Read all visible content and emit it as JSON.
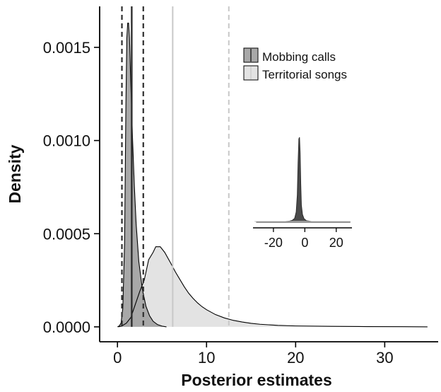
{
  "chart_data": {
    "type": "area",
    "xlabel": "Posterior estimates",
    "ylabel": "Density",
    "xlim": [
      -2,
      36
    ],
    "ylim": [
      -8e-05,
      0.00172
    ],
    "x_ticks": [
      0,
      10,
      20,
      30
    ],
    "y_ticks": [
      0.0,
      0.0005,
      0.001,
      0.0015
    ],
    "y_tick_labels": [
      "0.0000",
      "0.0005",
      "0.0010",
      "0.0015"
    ],
    "legend_position": "top-right",
    "series": [
      {
        "name": "Territorial songs",
        "color": "#e3e3e3",
        "line_color": "#000000",
        "points": [
          [
            0.1,
            0.0
          ],
          [
            0.5,
            5e-06
          ],
          [
            1.0,
            2e-05
          ],
          [
            1.5,
            5e-05
          ],
          [
            2.0,
            0.00012
          ],
          [
            2.5,
            0.00019
          ],
          [
            3.0,
            0.00025
          ],
          [
            3.5,
            0.00036
          ],
          [
            4.0,
            0.0004
          ],
          [
            4.3,
            0.00043
          ],
          [
            4.8,
            0.00043
          ],
          [
            5.3,
            0.0004
          ],
          [
            6.0,
            0.00034
          ],
          [
            6.5,
            0.000295
          ],
          [
            7.0,
            0.000255
          ],
          [
            7.5,
            0.000215
          ],
          [
            8.0,
            0.00018
          ],
          [
            8.5,
            0.000152
          ],
          [
            9.0,
            0.000128
          ],
          [
            9.5,
            0.000108
          ],
          [
            10.0,
            9.2e-05
          ],
          [
            11.0,
            6.6e-05
          ],
          [
            12.0,
            4.8e-05
          ],
          [
            13.0,
            3.5e-05
          ],
          [
            14.0,
            2.6e-05
          ],
          [
            15.0,
            1.9e-05
          ],
          [
            16.0,
            1.4e-05
          ],
          [
            18.0,
            8e-06
          ],
          [
            20.0,
            5e-06
          ],
          [
            24.0,
            3e-06
          ],
          [
            28.0,
            1.5e-06
          ],
          [
            32.0,
            8e-07
          ],
          [
            34.8,
            0.0
          ]
        ],
        "mean": 6.2,
        "ci_upper": 12.5
      },
      {
        "name": "Mobbing calls",
        "color": "#a8a8a8",
        "line_color": "#000000",
        "points": [
          [
            0.0,
            0.0
          ],
          [
            0.2,
            5e-06
          ],
          [
            0.4,
            2e-05
          ],
          [
            0.6,
            0.0001
          ],
          [
            0.8,
            0.00045
          ],
          [
            0.95,
            0.0012
          ],
          [
            1.05,
            0.00155
          ],
          [
            1.15,
            0.00163
          ],
          [
            1.25,
            0.00163
          ],
          [
            1.35,
            0.00155
          ],
          [
            1.5,
            0.0013
          ],
          [
            1.7,
            0.001
          ],
          [
            1.9,
            0.00075
          ],
          [
            2.1,
            0.00055
          ],
          [
            2.4,
            0.00035
          ],
          [
            2.8,
            0.0002
          ],
          [
            3.2,
            0.00011
          ],
          [
            3.6,
            6e-05
          ],
          [
            4.0,
            3e-05
          ],
          [
            4.5,
            1.2e-05
          ],
          [
            5.0,
            4e-06
          ],
          [
            5.5,
            0.0
          ]
        ],
        "mean": 1.6,
        "ci_lower": 0.5,
        "ci_upper": 2.9
      }
    ],
    "inset": {
      "type": "area",
      "xlim": [
        -33,
        30
      ],
      "x_ticks": [
        -20,
        0,
        20
      ],
      "tick_labels": [
        "-20",
        "0",
        "20"
      ],
      "position": "center-right",
      "series": {
        "color": "#4a4a4a",
        "points": [
          [
            -31,
            0.0
          ],
          [
            -20,
            0.0015
          ],
          [
            -15,
            0.004
          ],
          [
            -10,
            0.012
          ],
          [
            -8,
            0.022
          ],
          [
            -6.5,
            0.045
          ],
          [
            -5.5,
            0.12
          ],
          [
            -4.8,
            0.32
          ],
          [
            -4.3,
            0.7
          ],
          [
            -3.8,
            0.98
          ],
          [
            -3.4,
            1.0
          ],
          [
            -3.0,
            0.82
          ],
          [
            -2.6,
            0.45
          ],
          [
            -2.2,
            0.2
          ],
          [
            -1.5,
            0.09
          ],
          [
            -0.5,
            0.04
          ],
          [
            1,
            0.018
          ],
          [
            5,
            0.006
          ],
          [
            12,
            0.002
          ],
          [
            22,
            0.0006
          ],
          [
            29,
            0.0
          ]
        ]
      }
    }
  }
}
